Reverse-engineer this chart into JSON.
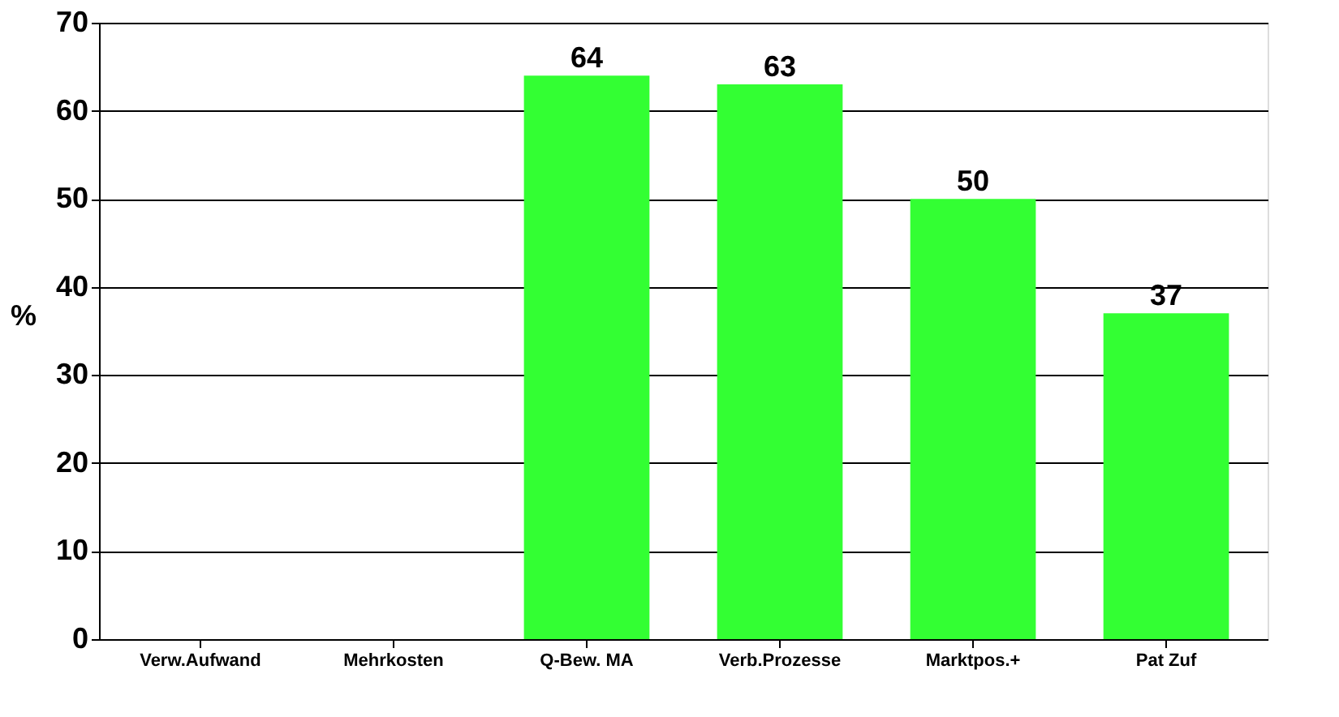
{
  "chart_data": {
    "type": "bar",
    "ylabel": "%",
    "categories": [
      "Verw.Aufwand",
      "Mehrkosten",
      "Q-Bew. MA",
      "Verb.Prozesse",
      "Marktpos.+",
      "Pat Zuf"
    ],
    "values": [
      0,
      0,
      64,
      63,
      50,
      37
    ],
    "value_labels": [
      null,
      null,
      "64",
      "63",
      "50",
      "37"
    ],
    "color": "#33ff33",
    "ylim": [
      0,
      70
    ],
    "yticks": [
      0,
      10,
      20,
      30,
      40,
      50,
      60,
      70
    ],
    "grid": "y"
  }
}
